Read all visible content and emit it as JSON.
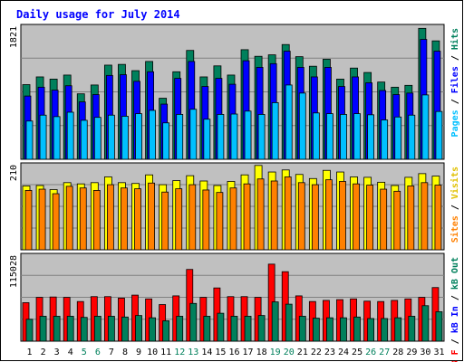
{
  "chart_data": [
    {
      "type": "bar",
      "title": "Daily usage for July 2014",
      "panel": "hits-files-pages",
      "ymax_label": "1821",
      "y_axis_labels": [
        {
          "text": "Pages",
          "color": "#00c0ff"
        },
        {
          "text": "Files",
          "color": "#0000ff"
        },
        {
          "text": "Hits",
          "color": "#00805c"
        }
      ],
      "categories": [
        "1",
        "2",
        "3",
        "4",
        "5",
        "6",
        "7",
        "8",
        "9",
        "10",
        "11",
        "12",
        "13",
        "14",
        "15",
        "16",
        "17",
        "18",
        "19",
        "20",
        "21",
        "22",
        "23",
        "24",
        "25",
        "26",
        "27",
        "28",
        "29",
        "30",
        "31"
      ],
      "weekend_days": [
        "5",
        "6",
        "12",
        "13",
        "19",
        "20",
        "26",
        "27"
      ],
      "ylim": [
        0,
        1821
      ],
      "series": [
        {
          "name": "Hits",
          "color": "#00805c",
          "values": [
            1015,
            1120,
            1090,
            1145,
            890,
            1010,
            1280,
            1290,
            1205,
            1330,
            830,
            1190,
            1480,
            1120,
            1270,
            1145,
            1490,
            1400,
            1420,
            1560,
            1395,
            1265,
            1360,
            1090,
            1240,
            1180,
            1050,
            980,
            1005,
            1780,
            1610
          ]
        },
        {
          "name": "Files",
          "color": "#0000ff",
          "values": [
            860,
            980,
            940,
            1000,
            780,
            880,
            1140,
            1150,
            1060,
            1190,
            750,
            1100,
            1330,
            990,
            1100,
            1020,
            1340,
            1250,
            1300,
            1470,
            1250,
            1120,
            1250,
            990,
            1120,
            1040,
            935,
            880,
            900,
            1630,
            1470
          ]
        },
        {
          "name": "Pages",
          "color": "#00c0ff",
          "values": [
            520,
            600,
            580,
            640,
            530,
            570,
            600,
            585,
            620,
            665,
            495,
            610,
            680,
            545,
            610,
            615,
            655,
            610,
            770,
            1010,
            900,
            630,
            620,
            610,
            620,
            605,
            535,
            575,
            600,
            875,
            650
          ]
        }
      ]
    },
    {
      "type": "bar",
      "panel": "visits-sites",
      "ymax_label": "210",
      "y_axis_labels": [
        {
          "text": "Sites",
          "color": "#ff8000"
        },
        {
          "text": "Visits",
          "color": "#e0c000"
        }
      ],
      "categories": [
        "1",
        "2",
        "3",
        "4",
        "5",
        "6",
        "7",
        "8",
        "9",
        "10",
        "11",
        "12",
        "13",
        "14",
        "15",
        "16",
        "17",
        "18",
        "19",
        "20",
        "21",
        "22",
        "23",
        "24",
        "25",
        "26",
        "27",
        "28",
        "29",
        "30",
        "31"
      ],
      "ylim": [
        0,
        210
      ],
      "series": [
        {
          "name": "Visits",
          "color": "#ffff00",
          "values": [
            156,
            157,
            147,
            164,
            161,
            164,
            178,
            164,
            162,
            183,
            159,
            169,
            181,
            168,
            157,
            167,
            183,
            206,
            190,
            195,
            184,
            174,
            194,
            190,
            178,
            177,
            165,
            157,
            177,
            186,
            180
          ]
        },
        {
          "name": "Sites",
          "color": "#ff8000",
          "values": [
            145,
            148,
            137,
            155,
            151,
            145,
            159,
            151,
            149,
            163,
            141,
            149,
            159,
            146,
            140,
            151,
            161,
            173,
            168,
            178,
            164,
            159,
            171,
            167,
            161,
            158,
            148,
            143,
            156,
            164,
            158
          ]
        }
      ]
    },
    {
      "type": "bar",
      "panel": "kbin-kbout-kbf",
      "ymax_label": "115028",
      "y_axis_labels": [
        {
          "text": "kB F",
          "color": "#ff0000"
        },
        {
          "text": "kB In",
          "color": "#0000ff"
        },
        {
          "text": "kB Out",
          "color": "#00805c"
        }
      ],
      "categories": [
        "1",
        "2",
        "3",
        "4",
        "5",
        "6",
        "7",
        "8",
        "9",
        "10",
        "11",
        "12",
        "13",
        "14",
        "15",
        "16",
        "17",
        "18",
        "19",
        "20",
        "21",
        "22",
        "23",
        "24",
        "25",
        "26",
        "27",
        "28",
        "29",
        "30",
        "31"
      ],
      "ylim": [
        0,
        115028
      ],
      "series": [
        {
          "name": "kB F",
          "color": "#ff0000",
          "values": [
            51000,
            58000,
            58500,
            58000,
            52500,
            59000,
            59000,
            57000,
            61000,
            56000,
            48500,
            60000,
            95000,
            58000,
            70500,
            59000,
            59000,
            58000,
            102000,
            92000,
            60000,
            52500,
            54000,
            55000,
            56000,
            53000,
            52500,
            54000,
            56000,
            58000,
            71000
          ]
        },
        {
          "name": "kB Out",
          "color": "#00805c",
          "values": [
            29000,
            33000,
            33000,
            33000,
            31500,
            33000,
            33000,
            32000,
            34000,
            31000,
            27000,
            33000,
            50000,
            33000,
            37000,
            33000,
            33000,
            34000,
            52000,
            49000,
            33000,
            30500,
            31000,
            31000,
            32000,
            30000,
            30000,
            31000,
            33000,
            47000,
            39000
          ]
        }
      ]
    }
  ]
}
